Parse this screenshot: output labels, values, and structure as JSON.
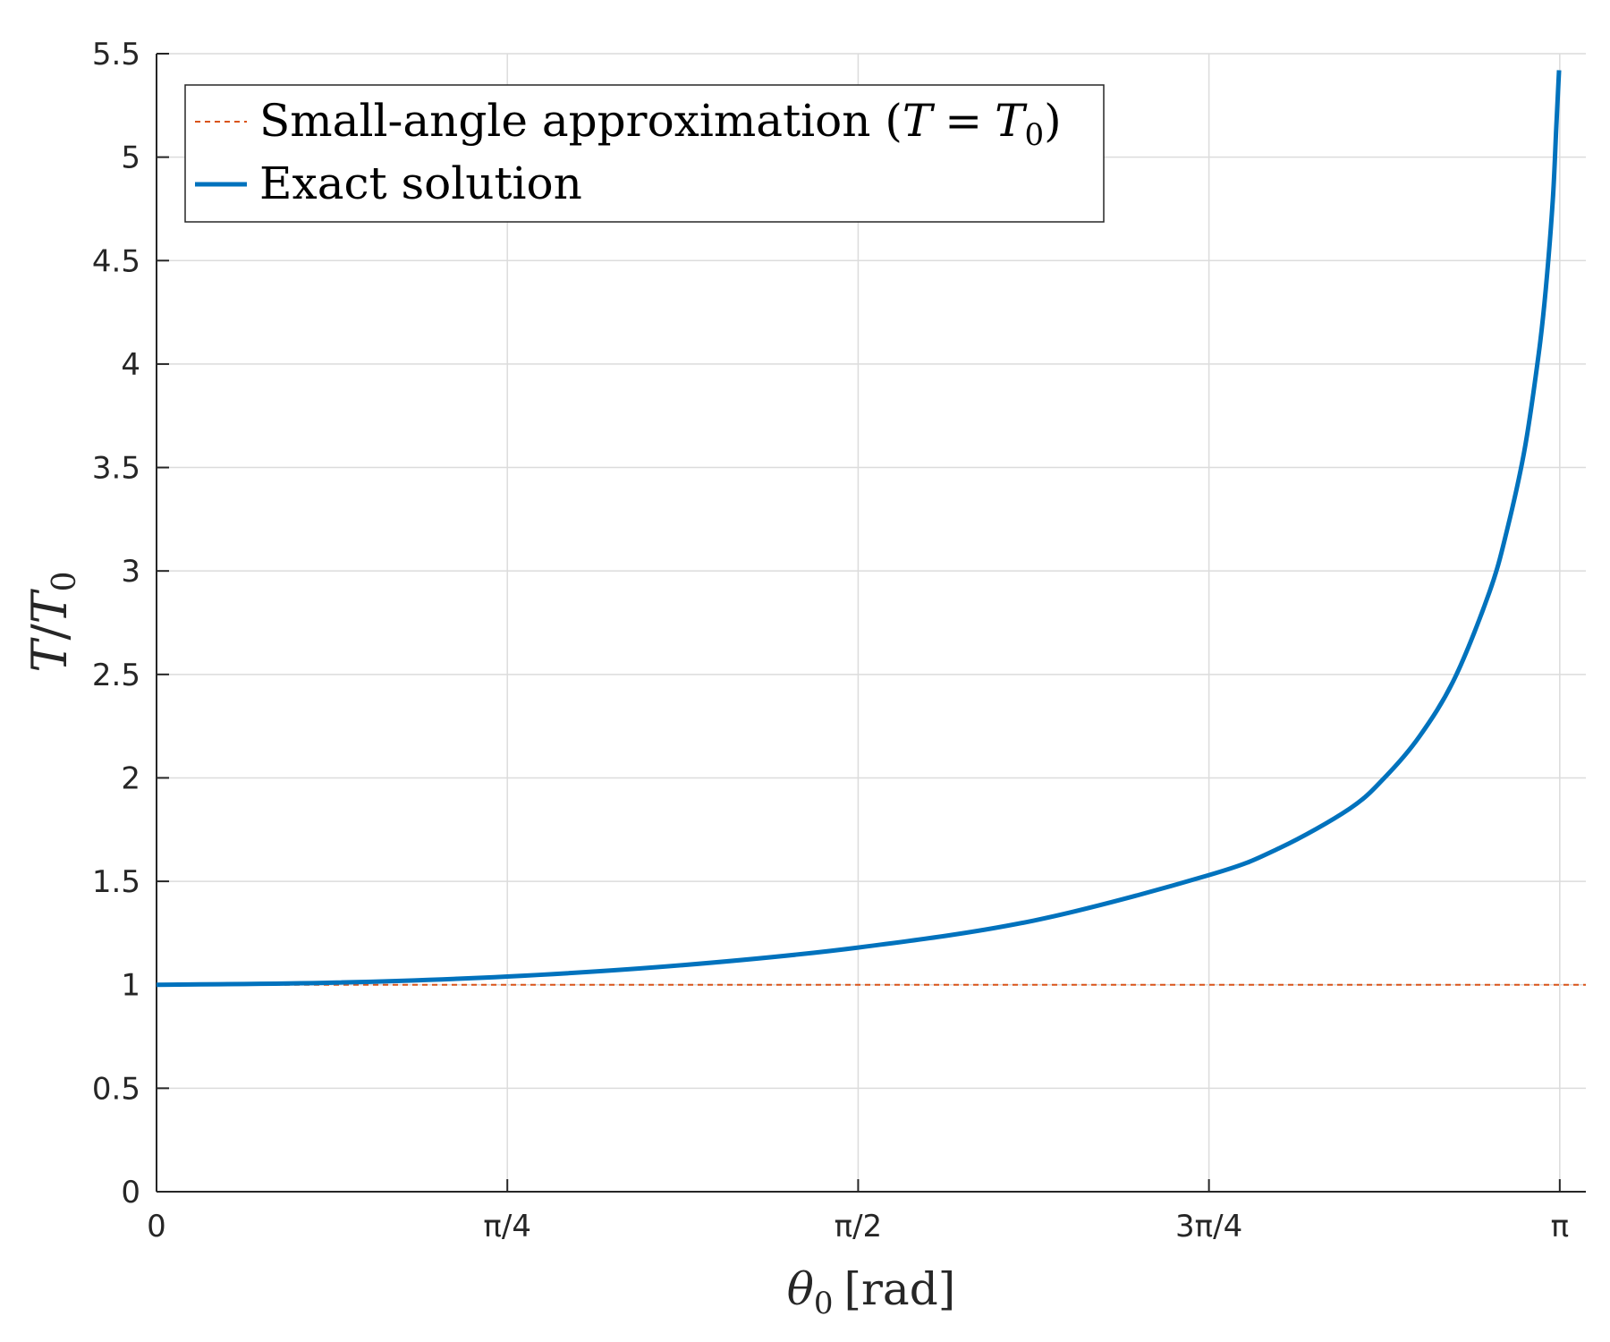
{
  "chart_data": {
    "type": "line",
    "xlabel": "θ0 [rad]",
    "xlabel_parts": {
      "symbol": "θ",
      "subscript": "0",
      "unit": "[rad]"
    },
    "ylabel": "T/T0",
    "ylabel_parts": {
      "num": "T",
      "slash": "/",
      "den": "T",
      "subscript": "0"
    },
    "xlim": [
      0,
      3.2
    ],
    "ylim": [
      0,
      5.5
    ],
    "x_ticks": [
      0,
      0.785398,
      1.570796,
      2.356194,
      3.141593
    ],
    "x_tick_labels": [
      "0",
      "π/4",
      "π/2",
      "3π/4",
      "π"
    ],
    "y_ticks": [
      0,
      0.5,
      1,
      1.5,
      2,
      2.5,
      3,
      3.5,
      4,
      4.5,
      5,
      5.5
    ],
    "y_tick_labels": [
      "0",
      "0.5",
      "1",
      "1.5",
      "2",
      "2.5",
      "3",
      "3.5",
      "4",
      "4.5",
      "5",
      "5.5"
    ],
    "grid": true,
    "legend_position": "top-left",
    "series": [
      {
        "name": "Small-angle approximation (T = T0)",
        "color": "#D95319",
        "style": "dashed",
        "x": [
          0,
          3.2
        ],
        "y": [
          1,
          1
        ]
      },
      {
        "name": "Exact solution",
        "color": "#0072BD",
        "style": "solid",
        "x": [
          0.0,
          0.3927,
          0.7854,
          1.1781,
          1.5708,
          1.9635,
          2.3562,
          2.5133,
          2.6704,
          2.7489,
          2.8274,
          2.906,
          2.9845,
          3.0238,
          3.0631,
          3.0945,
          3.1102,
          3.1259,
          3.1337,
          3.14
        ],
        "y": [
          1.0,
          1.01,
          1.04,
          1.095,
          1.18,
          1.31,
          1.53,
          1.66,
          1.85,
          2.0,
          2.2,
          2.48,
          2.9,
          3.2,
          3.59,
          4.05,
          4.36,
          4.79,
          5.14,
          5.42
        ]
      }
    ]
  },
  "legend": {
    "items": [
      {
        "label": "Small-angle approximation (",
        "math": "T = T0",
        "math_parts": {
          "lhs": "T",
          "eq": "=",
          "rhs": "T",
          "sub": "0"
        },
        "tail": ")"
      },
      {
        "label": "Exact solution"
      }
    ]
  }
}
